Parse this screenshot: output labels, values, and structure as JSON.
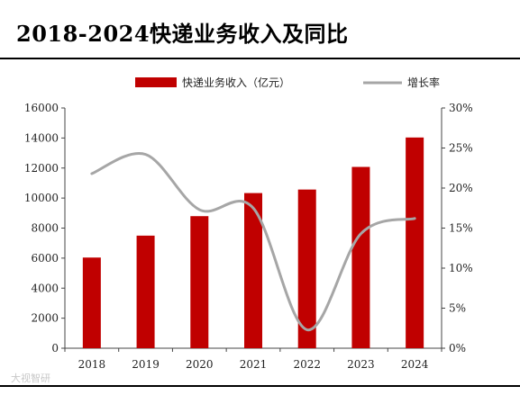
{
  "title": "2018-2024快递业务收入及同比",
  "watermark": "大视智研",
  "chart_data": {
    "type": "bar",
    "categories": [
      "2018",
      "2019",
      "2020",
      "2021",
      "2022",
      "2023",
      "2024"
    ],
    "series": [
      {
        "name": "快递业务收入（亿元）",
        "type": "bar",
        "axis": "left",
        "color": "#c00000",
        "values": [
          6038,
          7498,
          8795,
          10332,
          10567,
          12074,
          14034
        ]
      },
      {
        "name": "增长率",
        "type": "line",
        "axis": "right",
        "color": "#a6a6a6",
        "values": [
          21.8,
          24.2,
          17.3,
          17.5,
          2.3,
          14.3,
          16.2
        ]
      }
    ],
    "y_left": {
      "min": 0,
      "max": 16000,
      "ticks": [
        "0",
        "2000",
        "4000",
        "6000",
        "8000",
        "10000",
        "12000",
        "14000",
        "16000"
      ]
    },
    "y_right": {
      "min": 0,
      "max": 30,
      "ticks": [
        "0%",
        "5%",
        "10%",
        "15%",
        "20%",
        "25%",
        "30%"
      ]
    },
    "legend_position": "top-center",
    "grid": false
  }
}
